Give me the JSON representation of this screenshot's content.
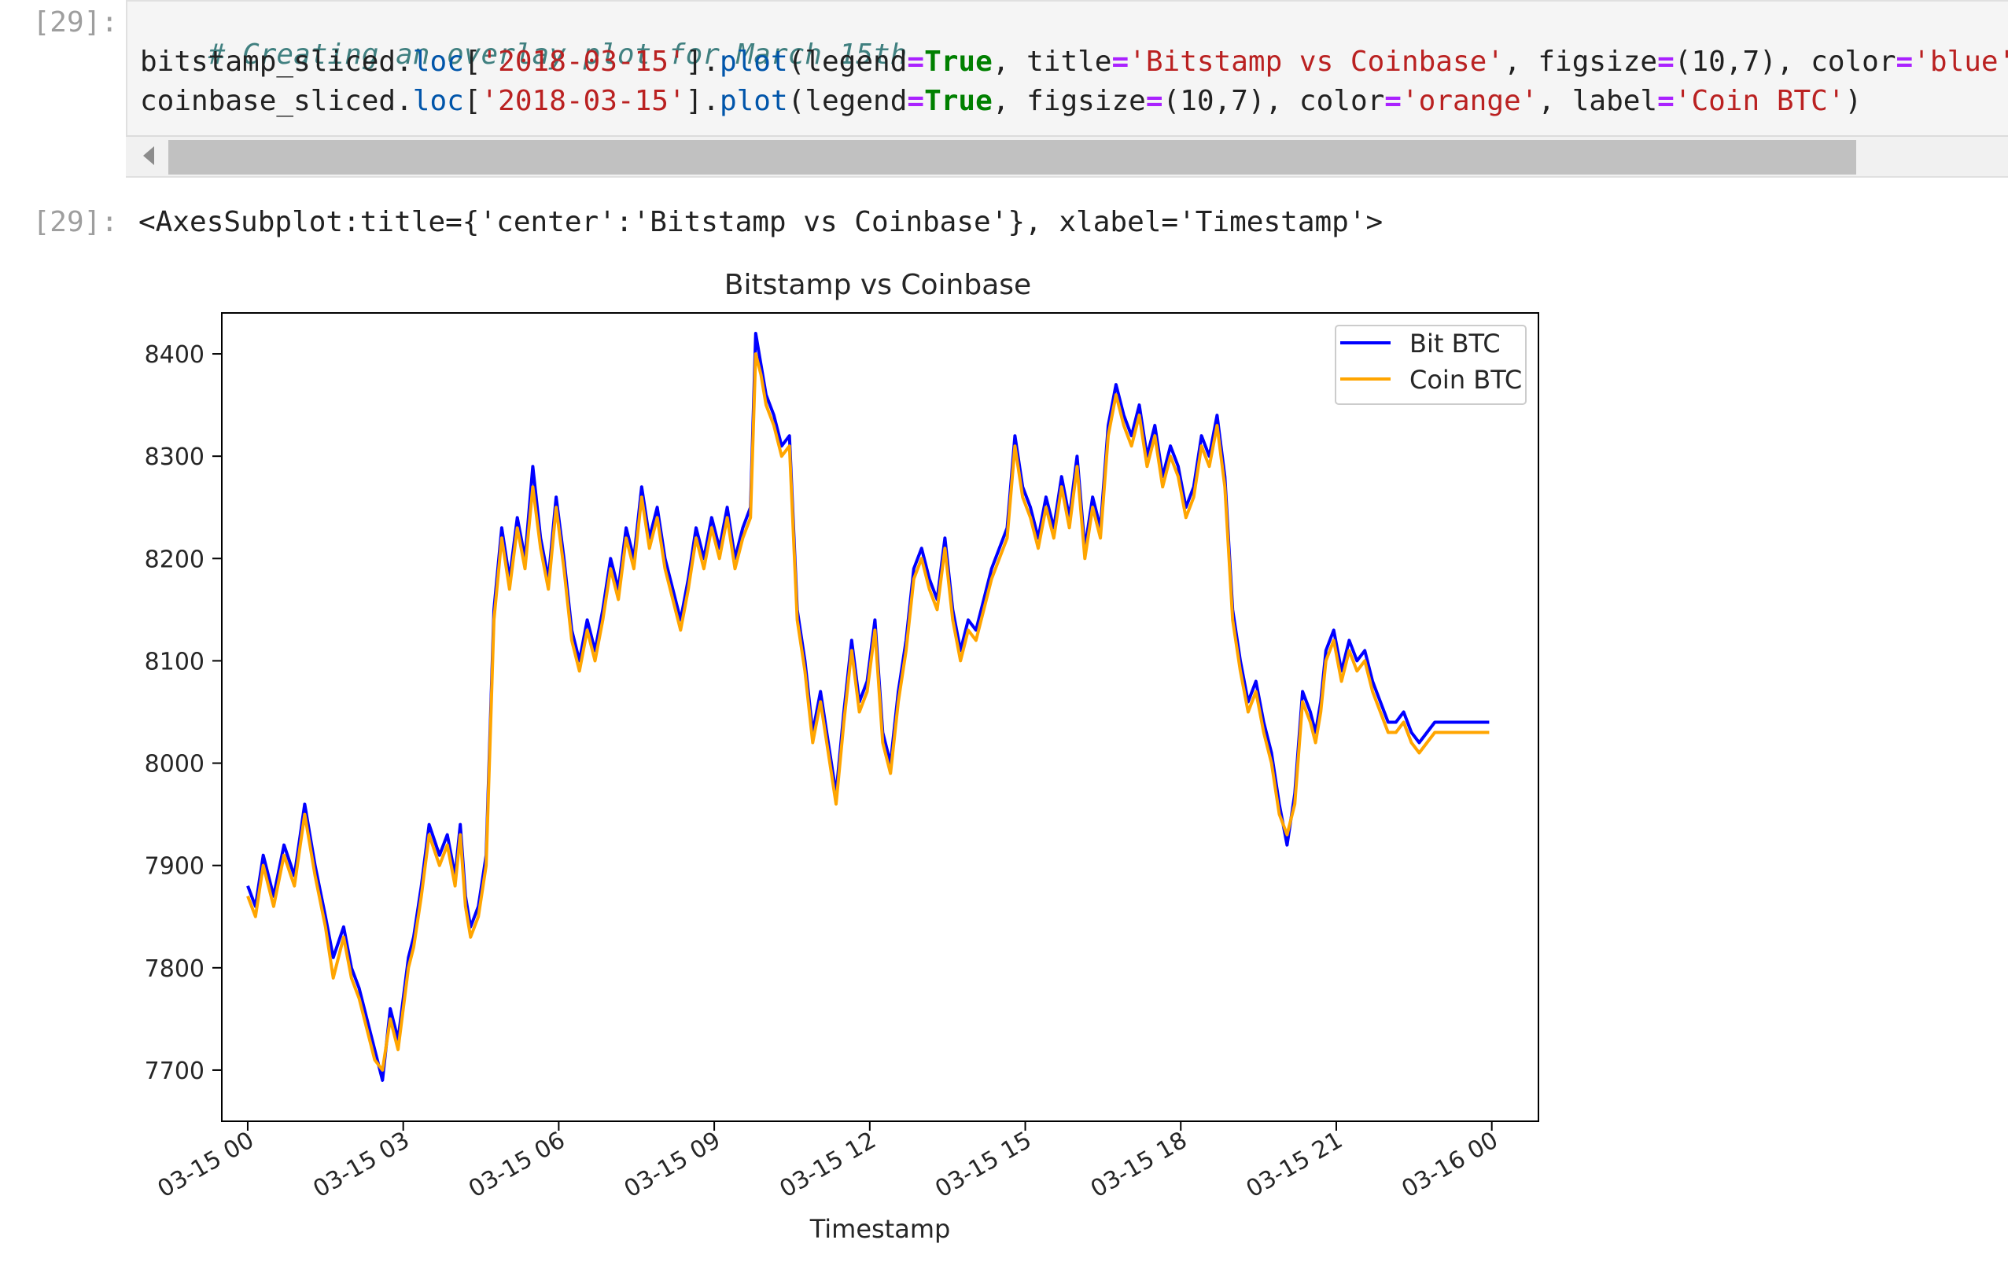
{
  "cells": {
    "input_prompt": "[29]:",
    "output_prompt": "[29]:",
    "code_line1": "# Creating an overlay plot for March 15th",
    "code_line2": {
      "seg1": "bitstamp_sliced.",
      "seg2": "loc",
      "seg3": "[",
      "seg4": "'2018-03-15'",
      "seg5": "].",
      "seg6": "plot",
      "seg7": "(legend",
      "seg8": "=",
      "seg9": "True",
      "seg10": ", title",
      "seg11": "=",
      "seg12": "'Bitstamp vs Coinbase'",
      "seg13": ", figsize",
      "seg14": "=",
      "seg15": "(10,7), color",
      "seg16": "=",
      "seg17": "'blue',"
    },
    "code_line3": {
      "seg1": "coinbase_sliced.",
      "seg2": "loc",
      "seg3": "[",
      "seg4": "'2018-03-15'",
      "seg5": "].",
      "seg6": "plot",
      "seg7": "(legend",
      "seg8": "=",
      "seg9": "True",
      "seg10": ", figsize",
      "seg11": "=",
      "seg12": "(10,7), color",
      "seg13": "=",
      "seg14": "'orange'",
      "seg15": ", label",
      "seg16": "=",
      "seg17": "'Coin BTC'",
      "seg18": ")"
    },
    "output_text": "<AxesSubplot:title={'center':'Bitstamp vs Coinbase'}, xlabel='Timestamp'>"
  },
  "chart_data": {
    "type": "line",
    "title": "Bitstamp vs Coinbase",
    "xlabel": "Timestamp",
    "ylabel": "",
    "x_unit": "hours since 03-15 00:00",
    "xlim": [
      -0.5,
      24.9
    ],
    "ylim": [
      7650,
      8440
    ],
    "x_tick_values": [
      0,
      3,
      6,
      9,
      12,
      15,
      18,
      21,
      24
    ],
    "x_tick_labels": [
      "03-15 00",
      "03-15 03",
      "03-15 06",
      "03-15 09",
      "03-15 12",
      "03-15 15",
      "03-15 18",
      "03-15 21",
      "03-16 00"
    ],
    "y_tick_values": [
      7700,
      7800,
      7900,
      8000,
      8100,
      8200,
      8300,
      8400
    ],
    "y_tick_labels": [
      "7700",
      "7800",
      "7900",
      "8000",
      "8100",
      "8200",
      "8300",
      "8400"
    ],
    "legend": {
      "placement": "top-right",
      "entries": [
        "Bit BTC",
        "Coin BTC"
      ]
    },
    "grid": false,
    "colors": {
      "Bit BTC": "#0000ff",
      "Coin BTC": "#ffa500"
    },
    "series": [
      {
        "name": "Bit BTC",
        "x": [
          0,
          0.15,
          0.3,
          0.5,
          0.7,
          0.9,
          1.1,
          1.3,
          1.5,
          1.65,
          1.85,
          2.0,
          2.15,
          2.3,
          2.45,
          2.6,
          2.75,
          2.9,
          3.1,
          3.2,
          3.35,
          3.5,
          3.7,
          3.85,
          4.0,
          4.1,
          4.2,
          4.3,
          4.45,
          4.6,
          4.75,
          4.9,
          5.05,
          5.2,
          5.35,
          5.5,
          5.65,
          5.8,
          5.95,
          6.1,
          6.25,
          6.4,
          6.55,
          6.7,
          6.85,
          7.0,
          7.15,
          7.3,
          7.45,
          7.6,
          7.75,
          7.9,
          8.05,
          8.2,
          8.35,
          8.5,
          8.65,
          8.8,
          8.95,
          9.1,
          9.25,
          9.4,
          9.55,
          9.7,
          9.8,
          9.9,
          10.0,
          10.15,
          10.3,
          10.45,
          10.6,
          10.75,
          10.9,
          11.05,
          11.2,
          11.35,
          11.5,
          11.65,
          11.8,
          11.95,
          12.1,
          12.25,
          12.4,
          12.55,
          12.7,
          12.85,
          13.0,
          13.15,
          13.3,
          13.45,
          13.6,
          13.75,
          13.9,
          14.05,
          14.2,
          14.35,
          14.5,
          14.65,
          14.8,
          14.95,
          15.1,
          15.25,
          15.4,
          15.55,
          15.7,
          15.85,
          16.0,
          16.15,
          16.3,
          16.45,
          16.6,
          16.75,
          16.9,
          17.05,
          17.2,
          17.35,
          17.5,
          17.65,
          17.8,
          17.95,
          18.1,
          18.25,
          18.4,
          18.55,
          18.7,
          18.85,
          19.0,
          19.15,
          19.3,
          19.45,
          19.6,
          19.75,
          19.9,
          20.05,
          20.2,
          20.35,
          20.5,
          20.6,
          20.7,
          20.8,
          20.95,
          21.1,
          21.25,
          21.4,
          21.55,
          21.7,
          21.85,
          22.0,
          22.15,
          22.3,
          22.45,
          22.6,
          22.75,
          22.9,
          23.05,
          23.2,
          23.35,
          23.5,
          23.65,
          23.8,
          23.95
        ],
        "y": [
          7880,
          7860,
          7910,
          7870,
          7920,
          7890,
          7960,
          7900,
          7850,
          7810,
          7840,
          7800,
          7780,
          7750,
          7720,
          7690,
          7760,
          7730,
          7810,
          7830,
          7880,
          7940,
          7910,
          7930,
          7890,
          7940,
          7870,
          7840,
          7860,
          7910,
          8150,
          8230,
          8180,
          8240,
          8200,
          8290,
          8220,
          8180,
          8260,
          8200,
          8130,
          8100,
          8140,
          8110,
          8150,
          8200,
          8170,
          8230,
          8200,
          8270,
          8220,
          8250,
          8200,
          8170,
          8140,
          8180,
          8230,
          8200,
          8240,
          8210,
          8250,
          8200,
          8230,
          8250,
          8420,
          8390,
          8360,
          8340,
          8310,
          8320,
          8150,
          8100,
          8030,
          8070,
          8020,
          7970,
          8050,
          8120,
          8060,
          8080,
          8140,
          8030,
          8000,
          8070,
          8120,
          8190,
          8210,
          8180,
          8160,
          8220,
          8150,
          8110,
          8140,
          8130,
          8160,
          8190,
          8210,
          8230,
          8320,
          8270,
          8250,
          8220,
          8260,
          8230,
          8280,
          8240,
          8300,
          8210,
          8260,
          8230,
          8330,
          8370,
          8340,
          8320,
          8350,
          8300,
          8330,
          8280,
          8310,
          8290,
          8250,
          8270,
          8320,
          8300,
          8340,
          8280,
          8150,
          8100,
          8060,
          8080,
          8040,
          8010,
          7960,
          7920,
          7970,
          8070,
          8050,
          8030,
          8060,
          8110,
          8130,
          8090,
          8120,
          8100,
          8110,
          8080,
          8060,
          8040,
          8040,
          8050,
          8030,
          8020,
          8030,
          8040,
          8040,
          8040,
          8040,
          8040,
          8040,
          8040,
          8040
        ]
      },
      {
        "name": "Coin BTC",
        "x": [
          0,
          0.15,
          0.3,
          0.5,
          0.7,
          0.9,
          1.1,
          1.3,
          1.5,
          1.65,
          1.85,
          2.0,
          2.15,
          2.3,
          2.45,
          2.6,
          2.75,
          2.9,
          3.1,
          3.2,
          3.35,
          3.5,
          3.7,
          3.85,
          4.0,
          4.1,
          4.2,
          4.3,
          4.45,
          4.6,
          4.75,
          4.9,
          5.05,
          5.2,
          5.35,
          5.5,
          5.65,
          5.8,
          5.95,
          6.1,
          6.25,
          6.4,
          6.55,
          6.7,
          6.85,
          7.0,
          7.15,
          7.3,
          7.45,
          7.6,
          7.75,
          7.9,
          8.05,
          8.2,
          8.35,
          8.5,
          8.65,
          8.8,
          8.95,
          9.1,
          9.25,
          9.4,
          9.55,
          9.7,
          9.8,
          9.9,
          10.0,
          10.15,
          10.3,
          10.45,
          10.6,
          10.75,
          10.9,
          11.05,
          11.2,
          11.35,
          11.5,
          11.65,
          11.8,
          11.95,
          12.1,
          12.25,
          12.4,
          12.55,
          12.7,
          12.85,
          13.0,
          13.15,
          13.3,
          13.45,
          13.6,
          13.75,
          13.9,
          14.05,
          14.2,
          14.35,
          14.5,
          14.65,
          14.8,
          14.95,
          15.1,
          15.25,
          15.4,
          15.55,
          15.7,
          15.85,
          16.0,
          16.15,
          16.3,
          16.45,
          16.6,
          16.75,
          16.9,
          17.05,
          17.2,
          17.35,
          17.5,
          17.65,
          17.8,
          17.95,
          18.1,
          18.25,
          18.4,
          18.55,
          18.7,
          18.85,
          19.0,
          19.15,
          19.3,
          19.45,
          19.6,
          19.75,
          19.9,
          20.05,
          20.2,
          20.35,
          20.5,
          20.6,
          20.7,
          20.8,
          20.95,
          21.1,
          21.25,
          21.4,
          21.55,
          21.7,
          21.85,
          22.0,
          22.15,
          22.3,
          22.45,
          22.6,
          22.75,
          22.9,
          23.05,
          23.2,
          23.35,
          23.5,
          23.65,
          23.8,
          23.95
        ],
        "y": [
          7870,
          7850,
          7900,
          7860,
          7910,
          7880,
          7950,
          7890,
          7840,
          7790,
          7830,
          7790,
          7770,
          7740,
          7710,
          7700,
          7750,
          7720,
          7800,
          7820,
          7870,
          7930,
          7900,
          7920,
          7880,
          7930,
          7860,
          7830,
          7850,
          7900,
          8140,
          8220,
          8170,
          8230,
          8190,
          8270,
          8210,
          8170,
          8250,
          8190,
          8120,
          8090,
          8130,
          8100,
          8140,
          8190,
          8160,
          8220,
          8190,
          8260,
          8210,
          8240,
          8190,
          8160,
          8130,
          8170,
          8220,
          8190,
          8230,
          8200,
          8240,
          8190,
          8220,
          8240,
          8400,
          8380,
          8350,
          8330,
          8300,
          8310,
          8140,
          8090,
          8020,
          8060,
          8010,
          7960,
          8040,
          8110,
          8050,
          8070,
          8130,
          8020,
          7990,
          8060,
          8110,
          8180,
          8200,
          8170,
          8150,
          8210,
          8140,
          8100,
          8130,
          8120,
          8150,
          8180,
          8200,
          8220,
          8310,
          8260,
          8240,
          8210,
          8250,
          8220,
          8270,
          8230,
          8290,
          8200,
          8250,
          8220,
          8320,
          8360,
          8330,
          8310,
          8340,
          8290,
          8320,
          8270,
          8300,
          8280,
          8240,
          8260,
          8310,
          8290,
          8330,
          8270,
          8140,
          8090,
          8050,
          8070,
          8030,
          8000,
          7950,
          7930,
          7960,
          8060,
          8040,
          8020,
          8050,
          8100,
          8120,
          8080,
          8110,
          8090,
          8100,
          8070,
          8050,
          8030,
          8030,
          8040,
          8020,
          8010,
          8020,
          8030,
          8030,
          8030,
          8030,
          8030,
          8030,
          8030,
          8030
        ]
      }
    ]
  }
}
